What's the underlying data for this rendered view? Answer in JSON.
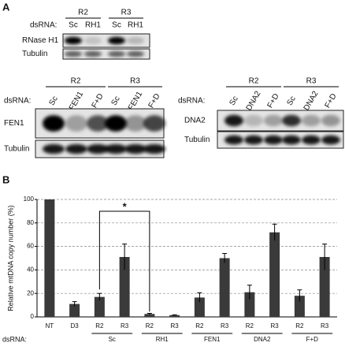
{
  "panel_a": {
    "label": "A",
    "blot1": {
      "dsrna": "dsRNA:",
      "groups": [
        "R2",
        "R3"
      ],
      "lanes": [
        "Sc",
        "RH1",
        "Sc",
        "RH1"
      ],
      "rows": [
        "RNase H1",
        "Tubulin"
      ]
    },
    "blot2": {
      "dsrna": "dsRNA:",
      "groups": [
        "R2",
        "R3"
      ],
      "lanes": [
        "Sc",
        "FEN1",
        "F+D",
        "Sc",
        "FEN1",
        "F+D"
      ],
      "rows": [
        "FEN1",
        "Tubulin"
      ]
    },
    "blot3": {
      "dsrna": "dsRNA:",
      "groups": [
        "R2",
        "R3"
      ],
      "lanes": [
        "Sc",
        "DNA2",
        "F+D",
        "Sc",
        "DNA2",
        "F+D"
      ],
      "rows": [
        "DNA2",
        "Tubulin"
      ]
    }
  },
  "chart_data": {
    "type": "bar",
    "panel_label": "B",
    "y_label": "Relative mtDNA copy number (%)",
    "categories": [
      "NT",
      "D3",
      "R2",
      "R3",
      "R2",
      "R3",
      "R2",
      "R3",
      "R2",
      "R3",
      "R2",
      "R3"
    ],
    "groups": [
      "Sc",
      "RH1",
      "FEN1",
      "DNA2",
      "F+D"
    ],
    "row_label": "dsRNA:",
    "values": [
      100,
      11,
      17,
      51,
      2.5,
      1.5,
      16.5,
      50,
      21,
      72,
      18,
      51
    ],
    "errors": [
      0,
      2,
      3,
      11,
      0.5,
      0.3,
      4,
      4,
      6,
      7,
      5,
      11
    ],
    "annotation": "*",
    "color": "#3a3a3a",
    "ylim": [
      0,
      100
    ],
    "yticks": [
      0,
      20,
      40,
      60,
      80,
      100
    ],
    "grid": true
  }
}
